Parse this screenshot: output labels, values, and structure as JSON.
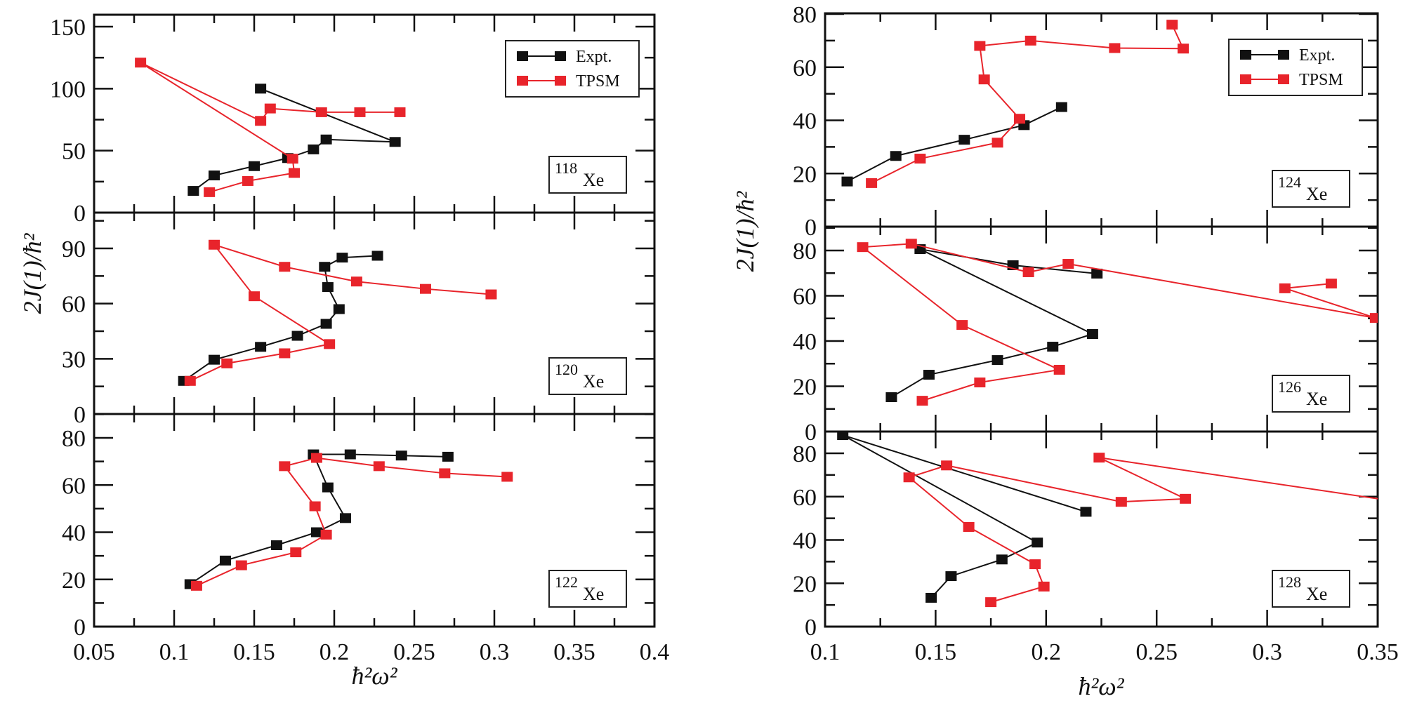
{
  "chart_data": {
    "type": "line",
    "title": "",
    "colors": {
      "Expt.": "#111111",
      "TPSM": "#e8242b"
    },
    "legend": {
      "entries": [
        "Expt.",
        "TPSM"
      ],
      "placement": "top-right"
    },
    "columns": [
      {
        "name": "left",
        "xlabel": "ħ²ω²",
        "ylabel": "2J(1)/ħ²",
        "xlim": [
          0.05,
          0.4
        ],
        "x_ticks": [
          "0.05",
          "0.1",
          "0.15",
          "0.2",
          "0.25",
          "0.3",
          "0.35",
          "0.4"
        ],
        "x_tick_values": [
          0.05,
          0.1,
          0.15,
          0.2,
          0.25,
          0.3,
          0.35,
          0.4
        ],
        "panels": [
          {
            "isotope": {
              "mass": "118",
              "symbol": "Xe"
            },
            "ylim": [
              0,
              160
            ],
            "y_tick_values": [
              0,
              50,
              100,
              150
            ],
            "y_ticks": [
              "0",
              "50",
              "100",
              "150"
            ],
            "legend": true,
            "series": [
              {
                "name": "Expt.",
                "x": [
                  0.112,
                  0.125,
                  0.15,
                  0.171,
                  0.187,
                  0.195,
                  0.238,
                  0.154
                ],
                "y": [
                  17.5,
                  30,
                  37.5,
                  44,
                  51,
                  59,
                  57,
                  100
                ]
              },
              {
                "name": "TPSM",
                "x": [
                  0.122,
                  0.146,
                  0.175,
                  0.174,
                  0.079,
                  0.154,
                  0.16,
                  0.192,
                  0.216,
                  0.241
                ],
                "y": [
                  16.5,
                  25.5,
                  32,
                  43.5,
                  121,
                  74,
                  84,
                  81,
                  81,
                  81
                ]
              }
            ]
          },
          {
            "isotope": {
              "mass": "120",
              "symbol": "Xe"
            },
            "ylim": [
              0,
              105
            ],
            "y_tick_values": [
              0,
              30,
              60,
              90
            ],
            "y_ticks": [
              "0",
              "30",
              "60",
              "90"
            ],
            "legend": false,
            "series": [
              {
                "name": "Expt.",
                "x": [
                  0.106,
                  0.125,
                  0.154,
                  0.177,
                  0.195,
                  0.203,
                  0.196,
                  0.194,
                  0.205,
                  0.227
                ],
                "y": [
                  18,
                  29.5,
                  36.5,
                  42.5,
                  49,
                  57,
                  69,
                  80,
                  85,
                  86
                ]
              },
              {
                "name": "TPSM",
                "x": [
                  0.11,
                  0.133,
                  0.169,
                  0.197,
                  0.15,
                  0.125,
                  0.169,
                  0.214,
                  0.257,
                  0.298
                ],
                "y": [
                  18,
                  27.5,
                  33,
                  38,
                  64,
                  92,
                  80,
                  72,
                  68,
                  65
                ]
              }
            ]
          },
          {
            "isotope": {
              "mass": "122",
              "symbol": "Xe"
            },
            "ylim": [
              0,
              90
            ],
            "y_tick_values": [
              0,
              20,
              40,
              60,
              80
            ],
            "y_ticks": [
              "0",
              "20",
              "40",
              "60",
              "80"
            ],
            "legend": false,
            "series": [
              {
                "name": "Expt.",
                "x": [
                  0.11,
                  0.132,
                  0.164,
                  0.189,
                  0.207,
                  0.196,
                  0.187,
                  0.21,
                  0.242,
                  0.271
                ],
                "y": [
                  18,
                  28,
                  34.5,
                  40,
                  46,
                  59,
                  73,
                  73,
                  72.5,
                  72
                ]
              },
              {
                "name": "TPSM",
                "x": [
                  0.114,
                  0.142,
                  0.176,
                  0.195,
                  0.188,
                  0.169,
                  0.189,
                  0.228,
                  0.269,
                  0.308
                ],
                "y": [
                  17.3,
                  26,
                  31.5,
                  39,
                  51,
                  68,
                  71.5,
                  68,
                  65,
                  63.5
                ]
              }
            ]
          }
        ]
      },
      {
        "name": "right",
        "xlabel": "ħ²ω²",
        "ylabel": "2J(1)/ħ²",
        "xlim": [
          0.1,
          0.35
        ],
        "x_ticks": [
          "0.1",
          "0.15",
          "0.2",
          "0.25",
          "0.3",
          "0.35"
        ],
        "x_tick_values": [
          0.1,
          0.15,
          0.2,
          0.25,
          0.3,
          0.35
        ],
        "panels": [
          {
            "isotope": {
              "mass": "124",
              "symbol": "Xe"
            },
            "ylim": [
              0,
              80
            ],
            "y_tick_values": [
              0,
              20,
              40,
              60,
              80
            ],
            "y_ticks": [
              "0",
              "20",
              "40",
              "60",
              "80"
            ],
            "legend": true,
            "series": [
              {
                "name": "Expt.",
                "x": [
                  0.11,
                  0.132,
                  0.163,
                  0.19,
                  0.207
                ],
                "y": [
                  17,
                  26.6,
                  32.7,
                  38.2,
                  45
                ]
              },
              {
                "name": "TPSM",
                "x": [
                  0.121,
                  0.143,
                  0.178,
                  0.188,
                  0.172,
                  0.17,
                  0.193,
                  0.231,
                  0.262,
                  0.257
                ],
                "y": [
                  16.4,
                  25.6,
                  31.6,
                  40.6,
                  55.4,
                  68,
                  70,
                  67.2,
                  67,
                  76
                ]
              }
            ]
          },
          {
            "isotope": {
              "mass": "126",
              "symbol": "Xe"
            },
            "ylim": [
              0,
              90
            ],
            "y_tick_values": [
              0,
              20,
              40,
              60,
              80
            ],
            "y_ticks": [
              "0",
              "20",
              "40",
              "60",
              "80"
            ],
            "legend": false,
            "series": [
              {
                "name": "Expt.",
                "x": [
                  0.13,
                  0.147,
                  0.178,
                  0.203,
                  0.221,
                  0.143,
                  0.185,
                  0.223
                ],
                "y": [
                  15.2,
                  25.1,
                  31.6,
                  37.5,
                  43.1,
                  80.6,
                  73.5,
                  69.8
                ]
              },
              {
                "name": "TPSM",
                "x": [
                  0.144,
                  0.17,
                  0.206,
                  0.162,
                  0.117,
                  0.139,
                  0.192,
                  0.21,
                  0.349,
                  0.308,
                  0.329
                ],
                "y": [
                  13.6,
                  21.7,
                  27.3,
                  47.1,
                  81.5,
                  83,
                  70.4,
                  74.1,
                  50.2,
                  63.3,
                  65.4
                ]
              }
            ]
          },
          {
            "isotope": {
              "mass": "128",
              "symbol": "Xe"
            },
            "ylim": [
              0,
              90
            ],
            "y_tick_values": [
              0,
              20,
              40,
              60,
              80
            ],
            "y_ticks": [
              "0",
              "20",
              "40",
              "60",
              "80"
            ],
            "legend": false,
            "series": [
              {
                "name": "Expt.",
                "x": [
                  0.148,
                  0.157,
                  0.18,
                  0.196,
                  0.108,
                  0.218
                ],
                "y": [
                  13.3,
                  23.3,
                  31,
                  38.8,
                  88.4,
                  53
                ]
              },
              {
                "name": "TPSM",
                "x": [
                  0.175,
                  0.199,
                  0.195,
                  0.165,
                  0.138,
                  0.155,
                  0.234,
                  0.263,
                  0.224,
                  0.37
                ],
                "y": [
                  11.3,
                  18.5,
                  28.8,
                  46,
                  68.9,
                  74.4,
                  57.6,
                  59,
                  78,
                  56
                ]
              }
            ]
          }
        ]
      }
    ]
  }
}
